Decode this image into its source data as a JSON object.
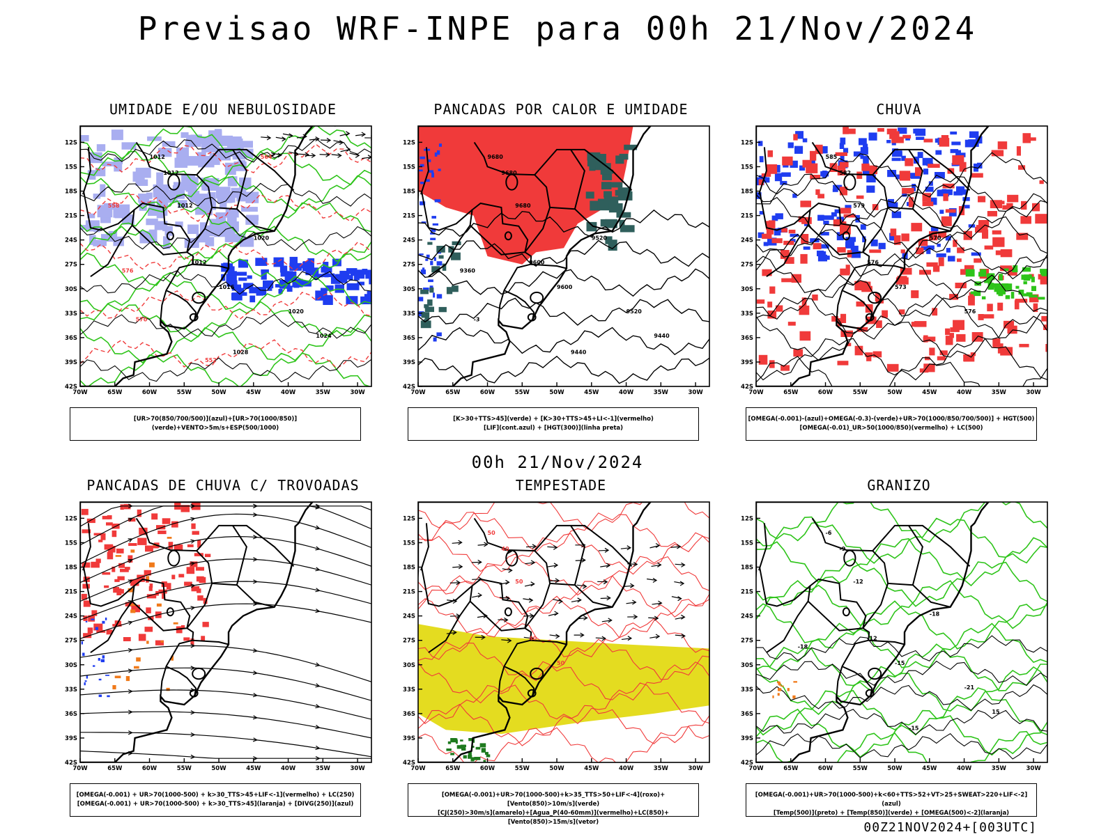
{
  "page": {
    "title": "Previsao WRF-INPE  para 00h 21/Nov/2024",
    "mid_date": "00h 21/Nov/2024",
    "footer": "00Z21NOV2024+[003UTC]"
  },
  "axes": {
    "lat_labels": [
      "12S",
      "15S",
      "18S",
      "21S",
      "24S",
      "27S",
      "30S",
      "33S",
      "36S",
      "39S",
      "42S"
    ],
    "lon_labels": [
      "70W",
      "65W",
      "60W",
      "55W",
      "50W",
      "45W",
      "40W",
      "35W",
      "30W"
    ],
    "lat_range": [
      -42,
      -10
    ],
    "lon_range": [
      -70,
      -28
    ]
  },
  "colors": {
    "red": "#f03a3a",
    "blue": "#1f3df0",
    "green": "#2ec41a",
    "lavender": "#a9aef0",
    "darkteal": "#2f5f5c",
    "yellow": "#e4dc20",
    "orange": "#f07a1a",
    "darkgreen": "#1e7a1e"
  },
  "panels": [
    {
      "id": "umidade",
      "title": "UMIDADE E/OU NEBULOSIDADE",
      "legend": [
        "[UR>70(850/700/500)](azul)+[UR>70(1000/850)](verde)+VENTO>5m/s+ESP(500/1000)"
      ],
      "labels": [
        "1012",
        "1012",
        "1012",
        "1012",
        "1016",
        "1020",
        "1020",
        "1024",
        "1028",
        "576",
        "570",
        "564",
        "552",
        "558"
      ]
    },
    {
      "id": "pancadas-calor",
      "title": "PANCADAS POR CALOR E UMIDADE",
      "legend": [
        "[K>30+TTS>45](verde) + [K>30+TTS>45+LI<-1](vermelho)",
        "[LIF](cont.azul) + [HGT(300)](linha preta)"
      ],
      "labels": [
        "9680",
        "9680",
        "9680",
        "9600",
        "9600",
        "9520",
        "9520",
        "9440",
        "9440",
        "9360",
        "-3"
      ]
    },
    {
      "id": "chuva",
      "title": "CHUVA",
      "legend": [
        "[OMEGA(-0.001)-(azul)+OMEGA(-0.3)-(verde)+UR>70(1000/850/700/500)] + HGT(500)",
        "[OMEGA(-0.01)_UR>50(1000/850)(vermelho) + LC(500)"
      ],
      "labels": [
        "585",
        "582",
        "579",
        "576",
        "573",
        "570",
        "576"
      ]
    },
    {
      "id": "pancadas-trovoadas",
      "title": "PANCADAS DE CHUVA C/ TROVOADAS",
      "legend": [
        "[OMEGA(-0.001) + UR>70(1000-500) + k>30_TTS>45+LIF<-1](vermelho) + LC(250)",
        "[OMEGA(-0.001) + UR>70(1000-500) + k>30_TTS>45](laranja) + [DIVG(250)](azul)"
      ],
      "labels": []
    },
    {
      "id": "tempestade",
      "title": "TEMPESTADE",
      "legend": [
        "[OMEGA(-0.001)+UR>70(1000-500)+k>35_TTS>50+LIF<-4](roxo)+[Vento(850)>10m/s](verde)",
        "[CJ(250)>30m/s](amarelo)+[Agua_P(40-60mm)](vermelho)+LC(850)+[Vento(850)>15m/s](vetor)"
      ],
      "labels": [
        "50",
        "40",
        "50",
        "40",
        "50"
      ]
    },
    {
      "id": "granizo",
      "title": "GRANIZO",
      "legend": [
        "[OMEGA(-0.001)+UR>70(1000-500)+k<60+TTS>52+VT>25+SWEAT>220+LIF<-2](azul)",
        "[Temp(500)](preto) + [Temp(850)](verde) + [OMEGA(500)<-2](laranja)"
      ],
      "labels": [
        "-6",
        "-9",
        "-12",
        "-12",
        "-15",
        "-18",
        "-21",
        "15",
        "-15",
        "-18"
      ]
    }
  ]
}
